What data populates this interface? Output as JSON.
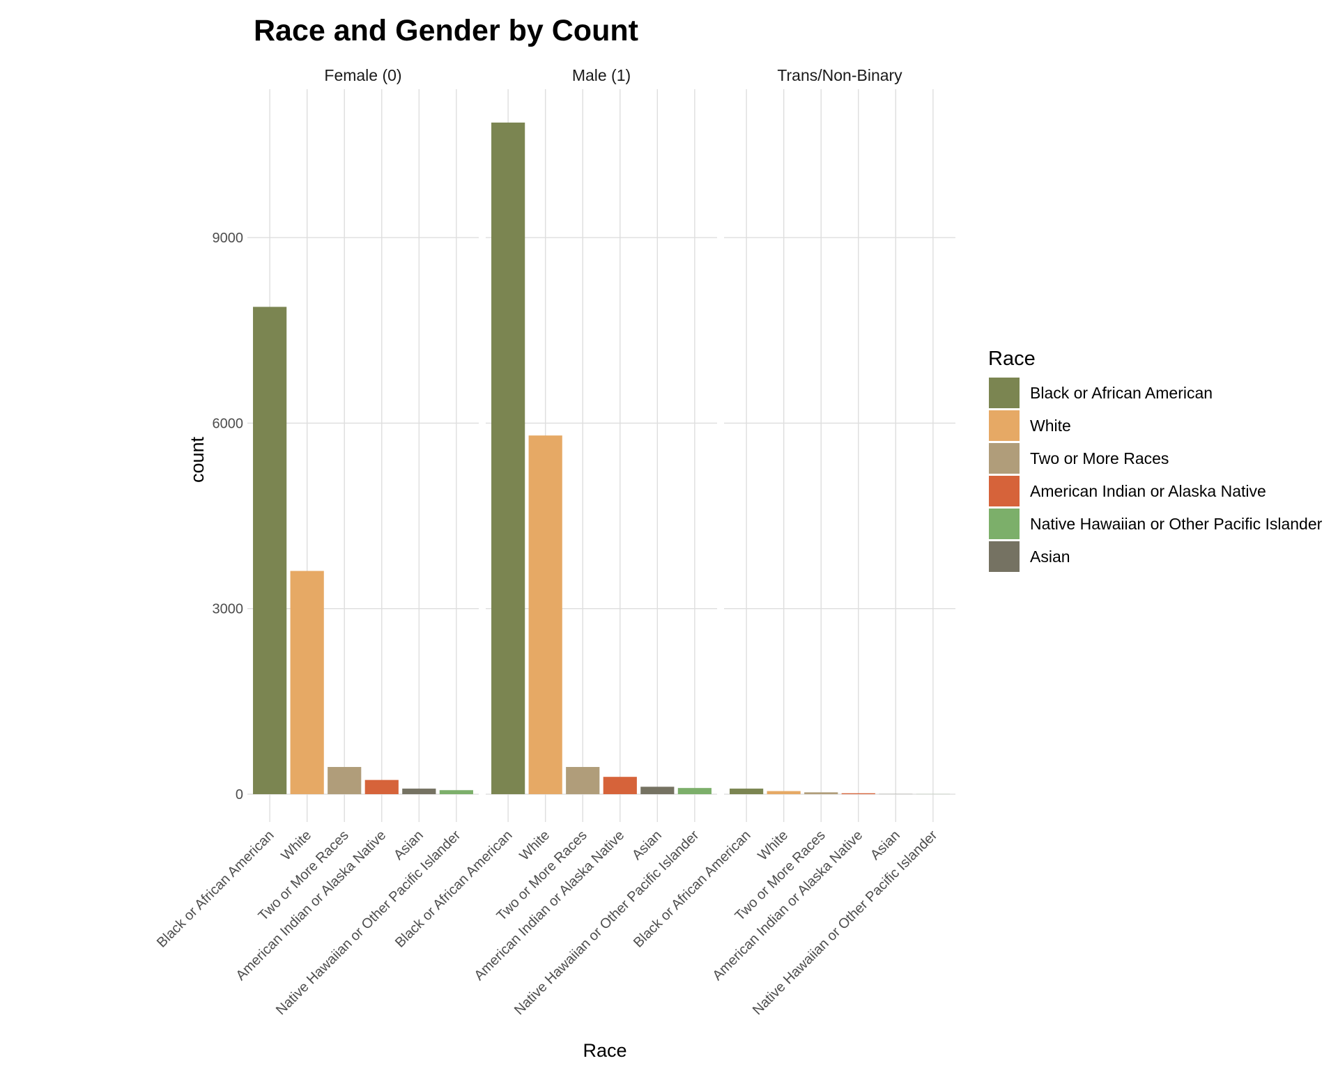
{
  "chart_data": {
    "type": "bar",
    "title": "Race and Gender by Count",
    "xlabel": "Race",
    "ylabel": "count",
    "ylim": [
      -450,
      11400
    ],
    "yticks": [
      0,
      3000,
      6000,
      9000
    ],
    "grid": true,
    "facets": [
      "Female (0)",
      "Male (1)",
      "Trans/Non-Binary"
    ],
    "categories": [
      "Black or African American",
      "White",
      "Two or More Races",
      "American Indian or Alaska Native",
      "Asian",
      "Native Hawaiian or Other Pacific Islander"
    ],
    "colors": {
      "Black or African American": "#7b8551",
      "White": "#e6a965",
      "Two or More Races": "#b09d7a",
      "American Indian or Alaska Native": "#d6633a",
      "Native Hawaiian or Other Pacific Islander": "#7caf6a",
      "Asian": "#757262"
    },
    "series": [
      {
        "facet": "Female (0)",
        "values": [
          7880,
          3610,
          440,
          230,
          90,
          65
        ]
      },
      {
        "facet": "Male (1)",
        "values": [
          10860,
          5800,
          440,
          280,
          120,
          100
        ]
      },
      {
        "facet": "Trans/Non-Binary",
        "values": [
          90,
          50,
          30,
          15,
          3,
          2
        ]
      }
    ],
    "legend": {
      "title": "Race",
      "position": "right",
      "entries": [
        "Black or African American",
        "White",
        "Two or More Races",
        "American Indian or Alaska Native",
        "Native Hawaiian or Other Pacific Islander",
        "Asian"
      ]
    }
  }
}
